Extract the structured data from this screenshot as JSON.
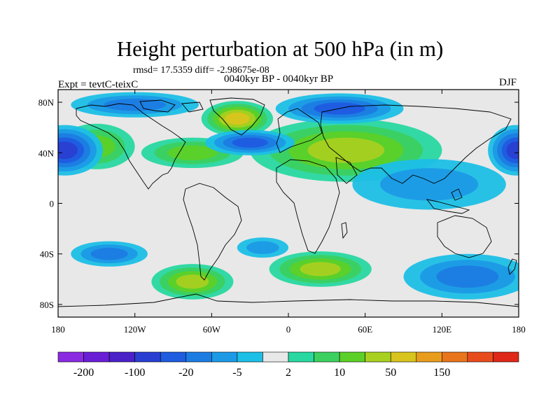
{
  "figure": {
    "title": "Height perturbation at 500 hPa (in m)",
    "stats": "rmsd= 17.5359 diff= -2.98675e-08",
    "period": "0040kyr BP - 0040kyr BP",
    "experiment": "Expt = tevtC-teixC",
    "season": "DJF"
  },
  "map": {
    "projection": "cylindrical-equidistant",
    "lon_range": [
      -180,
      180
    ],
    "lat_range": [
      -90,
      90
    ],
    "lon_ticks": [
      {
        "value": -180,
        "label": "180"
      },
      {
        "value": -120,
        "label": "120W"
      },
      {
        "value": -60,
        "label": "60W"
      },
      {
        "value": 0,
        "label": "0"
      },
      {
        "value": 60,
        "label": "60E"
      },
      {
        "value": 120,
        "label": "120E"
      },
      {
        "value": 180,
        "label": "180"
      }
    ],
    "lat_ticks": [
      {
        "value": 80,
        "label": "80N"
      },
      {
        "value": 40,
        "label": "40N"
      },
      {
        "value": 0,
        "label": "0"
      },
      {
        "value": -40,
        "label": "40S"
      },
      {
        "value": -80,
        "label": "80S"
      }
    ],
    "features": [
      {
        "type": "high",
        "name": "greenland-north-atlantic-high",
        "lon": -40,
        "lat": 67,
        "rx": 28,
        "ry": 14,
        "level": 90
      },
      {
        "type": "high",
        "name": "european-asian-high",
        "lon": 45,
        "lat": 42,
        "rx": 75,
        "ry": 25,
        "level": 40
      },
      {
        "type": "high",
        "name": "north-pacific-east-high",
        "lon": -150,
        "lat": 45,
        "rx": 30,
        "ry": 18,
        "level": 18
      },
      {
        "type": "high",
        "name": "north-america-high",
        "lon": -75,
        "lat": 40,
        "rx": 40,
        "ry": 12,
        "level": 20
      },
      {
        "type": "low",
        "name": "north-pacific-low",
        "lon": -175,
        "lat": 42,
        "rx": 30,
        "ry": 20,
        "level": -100
      },
      {
        "type": "low",
        "name": "west-pacific-low",
        "lon": 178,
        "lat": 42,
        "rx": 22,
        "ry": 20,
        "level": -100
      },
      {
        "type": "low",
        "name": "north-atlantic-low",
        "lon": -30,
        "lat": 48,
        "rx": 35,
        "ry": 10,
        "level": -60
      },
      {
        "type": "low",
        "name": "arctic-siberia-low",
        "lon": 40,
        "lat": 75,
        "rx": 50,
        "ry": 12,
        "level": -60
      },
      {
        "type": "low",
        "name": "arctic-canada-low",
        "lon": -120,
        "lat": 78,
        "rx": 50,
        "ry": 10,
        "level": -20
      },
      {
        "type": "low",
        "name": "tropical-indo-pacific",
        "lon": 110,
        "lat": 15,
        "rx": 60,
        "ry": 20,
        "level": -10
      },
      {
        "type": "high",
        "name": "south-pacific-high",
        "lon": -75,
        "lat": -62,
        "rx": 32,
        "ry": 14,
        "level": 50
      },
      {
        "type": "high",
        "name": "south-atlantic-indian-high",
        "lon": 25,
        "lat": -52,
        "rx": 40,
        "ry": 14,
        "level": 40
      },
      {
        "type": "low",
        "name": "southern-ocean-east-low",
        "lon": 140,
        "lat": -58,
        "rx": 50,
        "ry": 18,
        "level": -20
      },
      {
        "type": "low",
        "name": "south-pacific-midlat-low",
        "lon": -140,
        "lat": -40,
        "rx": 30,
        "ry": 10,
        "level": -20
      },
      {
        "type": "low",
        "name": "south-atlantic-subtropic-low",
        "lon": -20,
        "lat": -35,
        "rx": 20,
        "ry": 8,
        "level": -10
      }
    ]
  },
  "colorbar": {
    "colors": [
      "#8a2be2",
      "#6a1fd6",
      "#4a22c8",
      "#2a3fd2",
      "#1f5ce0",
      "#1c7ce2",
      "#1c9ae6",
      "#1cbfe6",
      "#e8e8e8",
      "#28d8a0",
      "#3cd060",
      "#5cd028",
      "#a8d020",
      "#d8c41c",
      "#e89c1c",
      "#e8741c",
      "#e84c1c",
      "#e02818"
    ],
    "labels": [
      {
        "edge": 1,
        "text": "-200"
      },
      {
        "edge": 3,
        "text": "-100"
      },
      {
        "edge": 5,
        "text": "-20"
      },
      {
        "edge": 7,
        "text": "-5"
      },
      {
        "edge": 9,
        "text": "2"
      },
      {
        "edge": 11,
        "text": "10"
      },
      {
        "edge": 13,
        "text": "50"
      },
      {
        "edge": 15,
        "text": "150"
      }
    ]
  }
}
